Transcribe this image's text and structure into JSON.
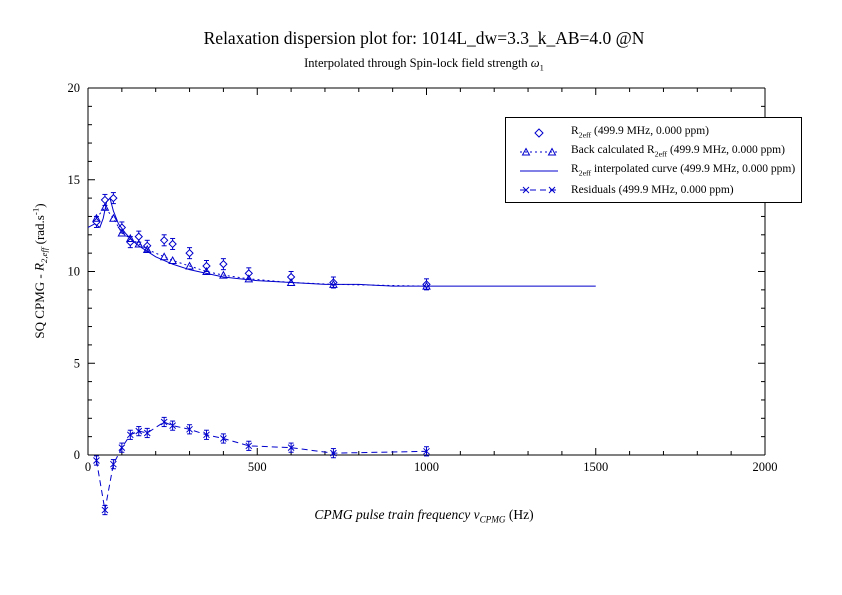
{
  "header": {
    "title": "Relaxation dispersion plot for: 1014L_dw=3.3_k_AB=4.0 @N",
    "subtitle_pre": "Interpolated through Spin-lock field strength ",
    "subtitle_symbol": "ω",
    "subtitle_sub": "1"
  },
  "axes": {
    "ylabel_pre": "SQ CPMG - ",
    "ylabel_r": "R",
    "ylabel_sub": "2,eff",
    "ylabel_mid": " (rad.s",
    "ylabel_sup": "-1",
    "ylabel_post": ")",
    "xlabel_pre": "CPMG pulse train frequency ",
    "xlabel_symbol": "ν",
    "xlabel_sub": "CPMG",
    "xlabel_post": " (Hz)"
  },
  "legend": {
    "entries": [
      {
        "icon": "legend-marker-diamond-icon",
        "marker": "diamond",
        "pre": "R",
        "sub": "2eff",
        "post": " (499.9 MHz, 0.000 ppm)"
      },
      {
        "icon": "legend-marker-triangle-icon",
        "marker": "triangle-dotted",
        "pre": "Back calculated R",
        "sub": "2eff",
        "post": " (499.9 MHz, 0.000 ppm)"
      },
      {
        "icon": "legend-marker-line-icon",
        "marker": "solid-line",
        "pre": "R",
        "sub": "2eff",
        "post": " interpolated curve (499.9 MHz, 0.000 ppm)"
      },
      {
        "icon": "legend-marker-x-icon",
        "marker": "x-dashed",
        "pre": "Residuals",
        "sub": "",
        "post": " (499.9 MHz, 0.000 ppm)"
      }
    ]
  },
  "chart_data": {
    "type": "line",
    "title": "Relaxation dispersion plot for: 1014L_dw=3.3_k_AB=4.0 @N",
    "subtitle": "Interpolated through Spin-lock field strength ω1",
    "xlabel": "CPMG pulse train frequency νCPMG (Hz)",
    "ylabel": "SQ CPMG - R2,eff (rad.s-1)",
    "xlim": [
      0,
      2000
    ],
    "ylim": [
      0,
      20
    ],
    "x_ticks": [
      0,
      500,
      1000,
      1500,
      2000
    ],
    "y_ticks": [
      0,
      5,
      10,
      15,
      20
    ],
    "x_minor_step": 100,
    "y_minor_step": 1,
    "grid": false,
    "legend_position": "top-right",
    "color": "#0000cc",
    "axis_color": "#000000",
    "series": [
      {
        "id": "r2eff",
        "name": "R2eff (499.9 MHz, 0.000 ppm)",
        "style": "scatter-diamond",
        "yerr": 0.3,
        "x": [
          25,
          50,
          75,
          100,
          125,
          150,
          175,
          225,
          250,
          300,
          350,
          400,
          475,
          600,
          725,
          1000
        ],
        "y": [
          12.7,
          13.9,
          14.0,
          12.4,
          11.6,
          11.9,
          11.4,
          11.7,
          11.5,
          11.0,
          10.3,
          10.4,
          9.9,
          9.7,
          9.4,
          9.3
        ]
      },
      {
        "id": "back-calculated",
        "name": "Back calculated R2eff (499.9 MHz, 0.000 ppm)",
        "style": "triangle-dotted",
        "x": [
          25,
          50,
          75,
          100,
          125,
          150,
          175,
          225,
          250,
          300,
          350,
          400,
          475,
          600,
          725,
          1000
        ],
        "y": [
          12.9,
          13.5,
          12.9,
          12.1,
          11.8,
          11.5,
          11.2,
          10.8,
          10.6,
          10.3,
          10.0,
          9.8,
          9.6,
          9.4,
          9.3,
          9.2
        ]
      },
      {
        "id": "interpolated-curve",
        "name": "R2eff interpolated curve (499.9 MHz, 0.000 ppm)",
        "style": "solid-line",
        "x": [
          0,
          20,
          35,
          45,
          55,
          65,
          75,
          90,
          110,
          130,
          150,
          175,
          200,
          250,
          300,
          350,
          400,
          450,
          500,
          600,
          700,
          800,
          900,
          1000,
          1200,
          1500
        ],
        "y": [
          12.4,
          12.6,
          12.4,
          12.9,
          13.8,
          14.0,
          13.3,
          12.6,
          12.1,
          11.7,
          11.4,
          11.1,
          10.8,
          10.4,
          10.1,
          9.9,
          9.7,
          9.6,
          9.5,
          9.4,
          9.3,
          9.3,
          9.2,
          9.2,
          9.2,
          9.2
        ]
      },
      {
        "id": "residuals",
        "name": "Residuals (499.9 MHz, 0.000 ppm)",
        "style": "x-dashed",
        "yerr": 0.25,
        "x": [
          25,
          50,
          75,
          100,
          125,
          150,
          175,
          225,
          250,
          300,
          350,
          400,
          475,
          600,
          725,
          1000
        ],
        "y": [
          -0.3,
          -3.0,
          -0.5,
          0.4,
          1.1,
          1.3,
          1.2,
          1.8,
          1.6,
          1.4,
          1.1,
          0.9,
          0.5,
          0.4,
          0.1,
          0.2
        ]
      }
    ]
  }
}
